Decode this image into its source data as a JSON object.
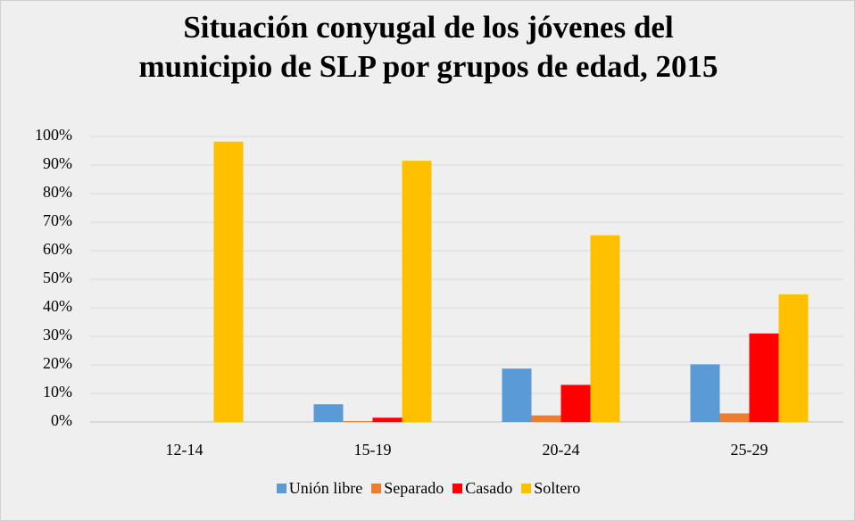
{
  "chart_data": {
    "type": "bar",
    "title": "Situación conyugal de los jóvenes del municipio de SLP por grupos de edad, 2015",
    "categories": [
      "12-14",
      "15-19",
      "20-24",
      "25-29"
    ],
    "series": [
      {
        "name": "Unión libre",
        "color": "#5b9bd5",
        "values": [
          0,
          6.2,
          18.7,
          20.2
        ]
      },
      {
        "name": "Separado",
        "color": "#ed7d31",
        "values": [
          0,
          0.3,
          2.3,
          3
        ]
      },
      {
        "name": "Casado",
        "color": "#ff0000",
        "values": [
          0,
          1.5,
          13,
          31
        ]
      },
      {
        "name": "Soltero",
        "color": "#ffc000",
        "values": [
          98.2,
          91.5,
          65.4,
          44.7
        ]
      }
    ],
    "ylim": [
      0,
      100
    ],
    "yticks": [
      {
        "value": 0,
        "label": "0%"
      },
      {
        "value": 10,
        "label": "10%"
      },
      {
        "value": 20,
        "label": "20%"
      },
      {
        "value": 30,
        "label": "30%"
      },
      {
        "value": 40,
        "label": "40%"
      },
      {
        "value": 50,
        "label": "50%"
      },
      {
        "value": 60,
        "label": "60%"
      },
      {
        "value": 70,
        "label": "70%"
      },
      {
        "value": 80,
        "label": "80%"
      },
      {
        "value": 90,
        "label": "90%"
      },
      {
        "value": 100,
        "label": "100%"
      }
    ],
    "grid": true,
    "legend": "bottom"
  }
}
